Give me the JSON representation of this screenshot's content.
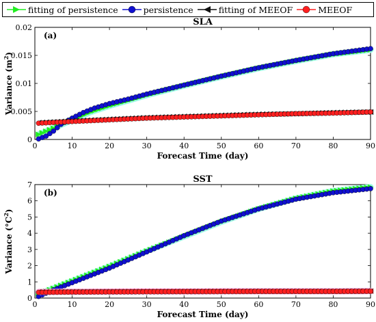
{
  "legend": [
    {
      "label": "fitting of persistence",
      "color": "#22ee22",
      "marker": "triangle-right"
    },
    {
      "label": "persistence",
      "color": "#1010d0",
      "marker": "circle"
    },
    {
      "label": "fitting of MEEOF",
      "color": "#111111",
      "marker": "triangle-left"
    },
    {
      "label": "MEEOF",
      "color": "#ff2020",
      "marker": "circle"
    }
  ],
  "chart_data": [
    {
      "type": "line",
      "panel_label": "(a)",
      "title": "SLA",
      "xlabel": "Forecast Time (day)",
      "ylabel_main": "Variance (m",
      "ylabel_sup": "2",
      "ylabel_end": ")",
      "xlim": [
        0,
        90
      ],
      "ylim": [
        0,
        0.02
      ],
      "xticks": [
        0,
        10,
        20,
        30,
        40,
        50,
        60,
        70,
        80,
        90
      ],
      "yticks": [
        0,
        0.005,
        0.01,
        0.015,
        0.02
      ],
      "ytick_labels": [
        "0",
        "0.005",
        "0.01",
        "0.015",
        "0.02"
      ],
      "series": [
        {
          "name": "fitting of persistence",
          "color": "#22ee22",
          "shadow": "#9ff7e8",
          "marker": "triangle-right",
          "x": [
            1,
            5,
            10,
            15,
            20,
            30,
            40,
            50,
            60,
            70,
            80,
            90
          ],
          "y": [
            0.0009,
            0.002,
            0.0035,
            0.0049,
            0.006,
            0.0079,
            0.0096,
            0.0112,
            0.0127,
            0.014,
            0.0152,
            0.016
          ]
        },
        {
          "name": "persistence",
          "color": "#1010d0",
          "marker": "circle",
          "x": [
            1,
            3,
            5,
            7,
            10,
            13,
            16,
            20,
            25,
            30,
            40,
            50,
            60,
            70,
            80,
            90
          ],
          "y": [
            0.0001,
            0.0006,
            0.0015,
            0.0027,
            0.0038,
            0.0048,
            0.0056,
            0.0064,
            0.0072,
            0.0081,
            0.0097,
            0.0113,
            0.0128,
            0.0141,
            0.0153,
            0.0162
          ]
        },
        {
          "name": "fitting of MEEOF",
          "color": "#111111",
          "marker": "triangle-left",
          "x": [
            1,
            10,
            20,
            30,
            40,
            50,
            60,
            70,
            80,
            90
          ],
          "y": [
            0.003,
            0.0033,
            0.0036,
            0.0039,
            0.0041,
            0.0043,
            0.0045,
            0.0046,
            0.0048,
            0.0049
          ]
        },
        {
          "name": "MEEOF",
          "color": "#ff2020",
          "marker": "circle",
          "x": [
            1,
            10,
            20,
            30,
            40,
            50,
            60,
            70,
            80,
            90
          ],
          "y": [
            0.0029,
            0.0032,
            0.0035,
            0.0038,
            0.004,
            0.0042,
            0.0044,
            0.0046,
            0.0047,
            0.0049
          ]
        }
      ]
    },
    {
      "type": "line",
      "panel_label": "(b)",
      "title": "SST",
      "xlabel": "Forecast Time (day)",
      "ylabel_main": "Variance (°C",
      "ylabel_sup": "2",
      "ylabel_end": ")",
      "xlim": [
        0,
        90
      ],
      "ylim": [
        0,
        7
      ],
      "xticks": [
        0,
        10,
        20,
        30,
        40,
        50,
        60,
        70,
        80,
        90
      ],
      "yticks": [
        0,
        1,
        2,
        3,
        4,
        5,
        6,
        7
      ],
      "ytick_labels": [
        "0",
        "1",
        "2",
        "3",
        "4",
        "5",
        "6",
        "7"
      ],
      "series": [
        {
          "name": "fitting of persistence",
          "color": "#22ee22",
          "shadow": "#9ff7e8",
          "marker": "triangle-right",
          "x": [
            1,
            5,
            10,
            20,
            30,
            40,
            50,
            60,
            70,
            80,
            90
          ],
          "y": [
            0.25,
            0.6,
            1.05,
            1.95,
            2.9,
            3.8,
            4.7,
            5.5,
            6.15,
            6.6,
            6.85
          ]
        },
        {
          "name": "persistence",
          "color": "#1010d0",
          "marker": "circle",
          "x": [
            1,
            5,
            10,
            20,
            30,
            40,
            50,
            60,
            70,
            80,
            90
          ],
          "y": [
            0.1,
            0.5,
            0.95,
            1.85,
            2.85,
            3.85,
            4.75,
            5.5,
            6.1,
            6.5,
            6.75
          ]
        },
        {
          "name": "fitting of MEEOF",
          "color": "#8b1a1a",
          "shadow": "#ff9fd0",
          "marker": "triangle-left",
          "x": [
            1,
            10,
            20,
            30,
            40,
            50,
            60,
            70,
            80,
            90
          ],
          "y": [
            0.38,
            0.39,
            0.4,
            0.41,
            0.41,
            0.42,
            0.42,
            0.42,
            0.42,
            0.43
          ]
        },
        {
          "name": "MEEOF",
          "color": "#ff2020",
          "marker": "circle",
          "x": [
            1,
            10,
            20,
            30,
            40,
            50,
            60,
            70,
            80,
            90
          ],
          "y": [
            0.35,
            0.37,
            0.38,
            0.39,
            0.4,
            0.4,
            0.41,
            0.41,
            0.41,
            0.42
          ]
        }
      ]
    }
  ]
}
